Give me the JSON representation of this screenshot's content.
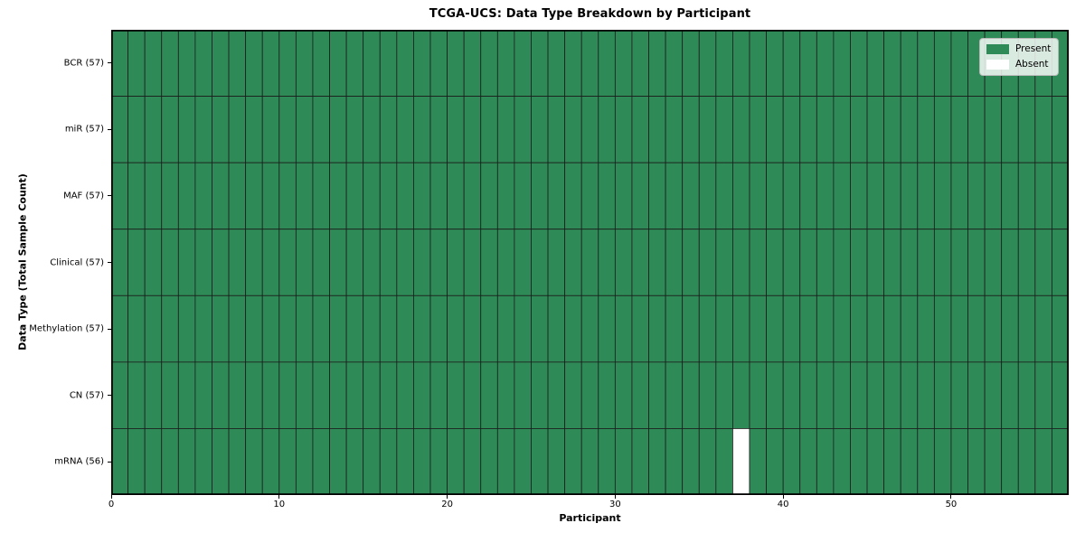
{
  "chart_data": {
    "type": "heatmap",
    "title": "TCGA-UCS: Data Type Breakdown by Participant",
    "xlabel": "Participant",
    "ylabel": "Data Type (Total Sample Count)",
    "n_participants": 57,
    "x_ticks": [
      0,
      10,
      20,
      30,
      40,
      50
    ],
    "rows": [
      {
        "label": "BCR (57)",
        "data_type": "BCR",
        "total_samples": 57,
        "absent_participants": []
      },
      {
        "label": "miR (57)",
        "data_type": "miR",
        "total_samples": 57,
        "absent_participants": []
      },
      {
        "label": "MAF (57)",
        "data_type": "MAF",
        "total_samples": 57,
        "absent_participants": []
      },
      {
        "label": "Clinical (57)",
        "data_type": "Clinical",
        "total_samples": 57,
        "absent_participants": []
      },
      {
        "label": "Methylation (57)",
        "data_type": "Methylation",
        "total_samples": 57,
        "absent_participants": []
      },
      {
        "label": "CN (57)",
        "data_type": "CN",
        "total_samples": 57,
        "absent_participants": []
      },
      {
        "label": "mRNA (56)",
        "data_type": "mRNA",
        "total_samples": 56,
        "absent_participants": [
          37
        ]
      }
    ],
    "legend": [
      {
        "label": "Present",
        "color": "#2e8b57"
      },
      {
        "label": "Absent",
        "color": "#ffffff"
      }
    ],
    "colors": {
      "present": "#2e8b57",
      "absent": "#ffffff",
      "grid_line": "#1c1c1c",
      "border": "#000000"
    },
    "axis_range_x": [
      0,
      57
    ],
    "grid": true,
    "legend_position": "upper right"
  }
}
